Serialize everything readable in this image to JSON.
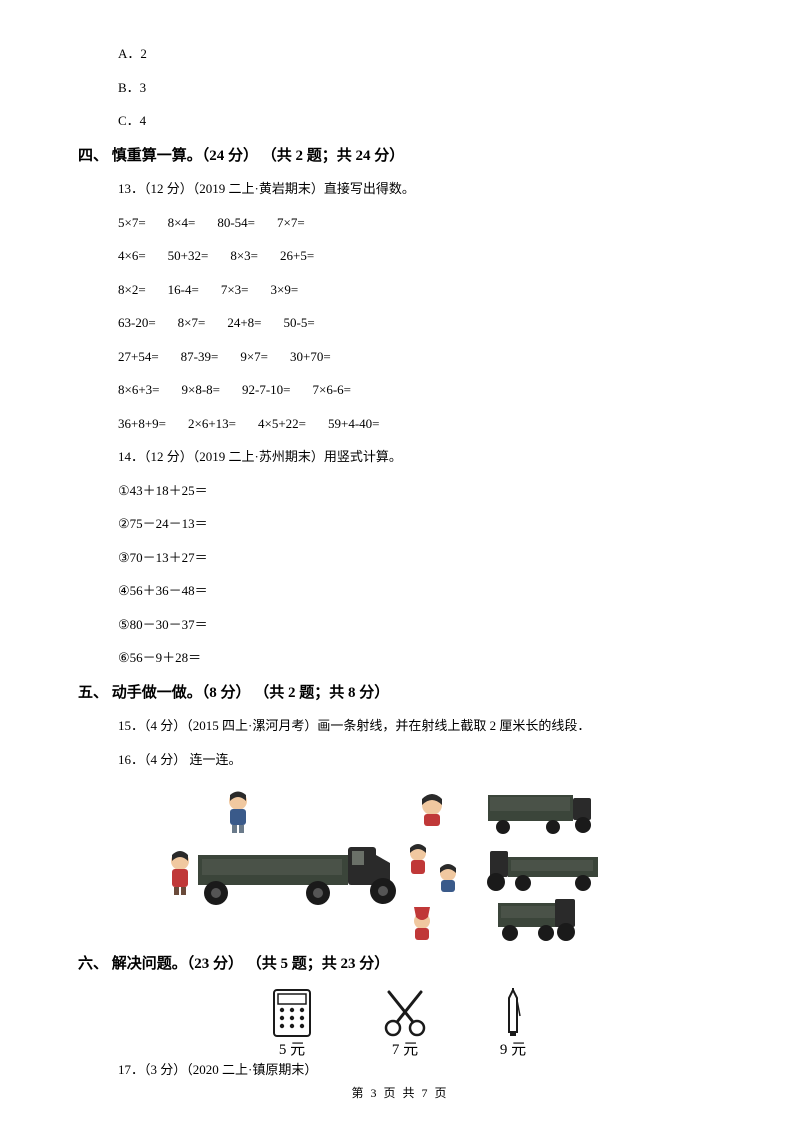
{
  "choices": {
    "a": "A．2",
    "b": "B．3",
    "c": "C．4"
  },
  "section4": {
    "heading": "四、 慎重算一算。（24 分） （共 2 题；共 24 分）",
    "q13_intro": "13．（12 分）（2019 二上·黄岩期末）直接写出得数。",
    "rows": [
      [
        "5×7=",
        "8×4=",
        "80-54=",
        "7×7="
      ],
      [
        "4×6=",
        "50+32=",
        "8×3=",
        "26+5="
      ],
      [
        "8×2=",
        "16-4=",
        "7×3=",
        "3×9="
      ],
      [
        "63-20=",
        "8×7=",
        "24+8=",
        "50-5="
      ],
      [
        "27+54=",
        "87-39=",
        "9×7=",
        "30+70="
      ],
      [
        "8×6+3=",
        "9×8-8=",
        "92-7-10=",
        "7×6-6="
      ],
      [
        "36+8+9=",
        "2×6+13=",
        "4×5+22=",
        "59+4-40="
      ]
    ],
    "q14_intro": "14．（12 分）（2019 二上·苏州期末）用竖式计算。",
    "q14_items": [
      "①43＋18＋25＝",
      "②75－24－13＝",
      "③70－13＋27＝",
      "④56＋36－48＝",
      "⑤80－30－37＝",
      "⑥56－9＋28＝"
    ]
  },
  "section5": {
    "heading": "五、 动手做一做。（8 分） （共 2 题；共 8 分）",
    "q15": "15．（4 分）（2015 四上·漯河月考）画一条射线，并在射线上截取 2 厘米长的线段．",
    "q16": "16．（4 分） 连一连。"
  },
  "section6": {
    "heading": "六、 解决问题。（23 分） （共 5 题；共 23 分）",
    "q17_text": "17．（3 分）（2020 二上·镇原期末）",
    "prices": [
      "5 元",
      "7 元",
      "9 元"
    ]
  },
  "figure": {
    "truck_body": "#3b453a",
    "truck_bed": "#4a5248",
    "wheel": "#1a1a1a",
    "person_red": "#c03838",
    "person_blue": "#3a5a8a",
    "person_skin": "#f0c8a0",
    "person_hair": "#2a2a2a",
    "bg": "#ffffff"
  },
  "items": {
    "calc_price": "5 元",
    "scissors_price": "7 元",
    "pen_price": "9 元",
    "ink": "#1a1a1a"
  },
  "footer": "第 3 页 共 7 页"
}
